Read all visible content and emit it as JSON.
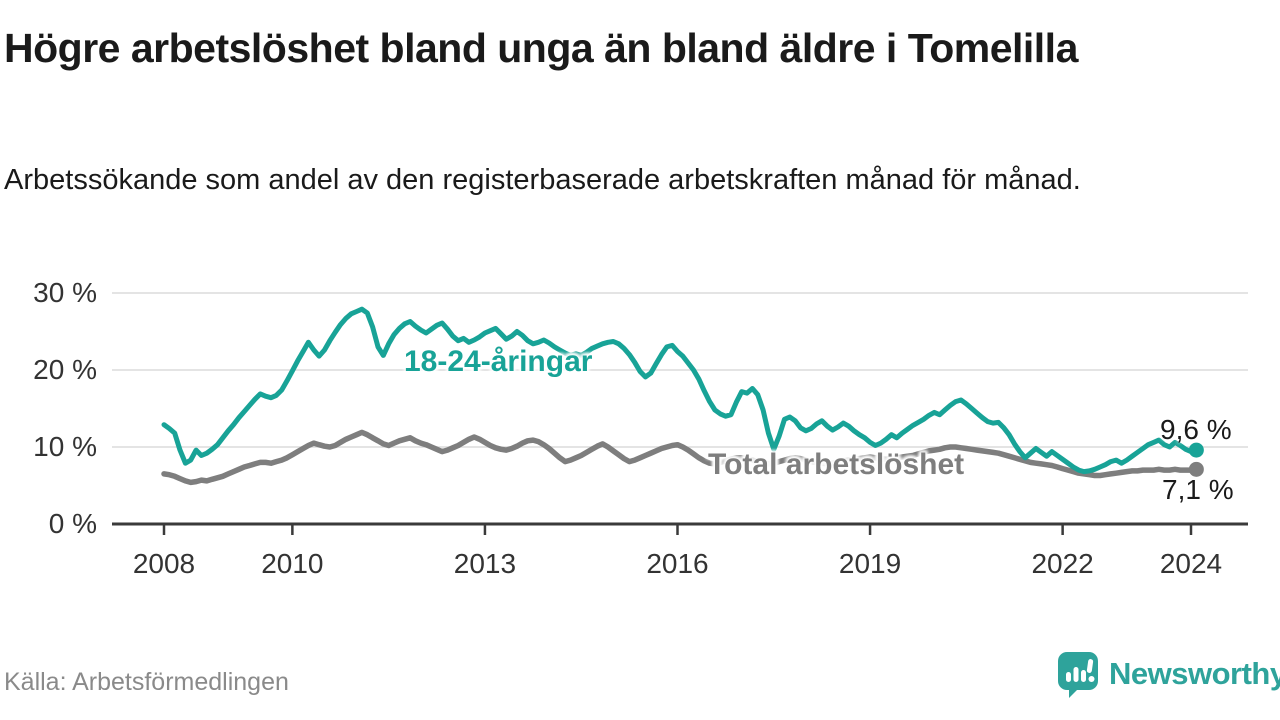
{
  "header": {
    "title": "Högre arbetslöshet bland unga än bland äldre i Tomelilla",
    "subtitle": "Arbetssökande som andel av den registerbaserade arbetskraften månad för månad."
  },
  "footer": {
    "source": "Källa: Arbetsförmedlingen",
    "brand": "Newsworthy"
  },
  "colors": {
    "youth_line": "#18A397",
    "total_line": "#7E7E7E",
    "grid": "#DBDBDB",
    "axis": "#3A3A3A",
    "text": "#1A1A1A",
    "tick_text": "#333333",
    "muted_text": "#8A8A8A",
    "brand_teal": "#2EA39B"
  },
  "chart_data": {
    "type": "line",
    "title": "Högre arbetslöshet bland unga än bland äldre i Tomelilla",
    "xlabel": "",
    "ylabel": "Arbetssökande som andel av den registerbaserade arbetskraften",
    "x_unit": "month",
    "x_start": "2008-01",
    "x_end": "2024-02",
    "ylim": [
      0,
      30
    ],
    "grid": "horizontal",
    "y_ticks": [
      {
        "label": "30 %",
        "value": 30
      },
      {
        "label": "20 %",
        "value": 20
      },
      {
        "label": "10 %",
        "value": 10
      },
      {
        "label": "0 %",
        "value": 0
      }
    ],
    "x_ticks": [
      {
        "label": "2008",
        "year": 2008
      },
      {
        "label": "2010",
        "year": 2010
      },
      {
        "label": "2013",
        "year": 2013
      },
      {
        "label": "2016",
        "year": 2016
      },
      {
        "label": "2019",
        "year": 2019
      },
      {
        "label": "2022",
        "year": 2022
      },
      {
        "label": "2024",
        "year": 2024
      }
    ],
    "series": [
      {
        "name": "Total arbetslöshet",
        "color": "#7E7E7E",
        "end_label": "7,1 %",
        "end_value": 7.1,
        "values": [
          6.5,
          6.4,
          6.2,
          5.9,
          5.6,
          5.4,
          5.5,
          5.7,
          5.6,
          5.8,
          6.0,
          6.2,
          6.5,
          6.8,
          7.1,
          7.4,
          7.6,
          7.8,
          8.0,
          8.0,
          7.9,
          8.1,
          8.3,
          8.6,
          9.0,
          9.4,
          9.8,
          10.2,
          10.5,
          10.3,
          10.1,
          10.0,
          10.2,
          10.6,
          11.0,
          11.3,
          11.6,
          11.9,
          11.6,
          11.2,
          10.8,
          10.4,
          10.2,
          10.5,
          10.8,
          11.0,
          11.2,
          10.8,
          10.5,
          10.3,
          10.0,
          9.7,
          9.4,
          9.6,
          9.9,
          10.2,
          10.6,
          11.0,
          11.3,
          11.0,
          10.6,
          10.2,
          9.9,
          9.7,
          9.6,
          9.8,
          10.1,
          10.5,
          10.8,
          10.9,
          10.7,
          10.3,
          9.8,
          9.2,
          8.6,
          8.1,
          8.3,
          8.6,
          8.9,
          9.3,
          9.7,
          10.1,
          10.4,
          10.0,
          9.5,
          9.0,
          8.5,
          8.1,
          8.3,
          8.6,
          8.9,
          9.2,
          9.5,
          9.8,
          10.0,
          10.2,
          10.3,
          10.0,
          9.6,
          9.1,
          8.6,
          8.2,
          7.9,
          7.8,
          8.0,
          8.2,
          8.4,
          8.6,
          8.6,
          8.5,
          8.3,
          8.1,
          7.9,
          7.8,
          7.9,
          8.1,
          8.3,
          8.5,
          8.6,
          8.5,
          8.3,
          8.1,
          8.0,
          7.9,
          7.8,
          7.9,
          8.0,
          8.2,
          8.3,
          8.4,
          8.5,
          8.6,
          8.7,
          8.6,
          8.5,
          8.4,
          8.5,
          8.6,
          8.7,
          8.8,
          8.9,
          9.1,
          9.3,
          9.5,
          9.6,
          9.7,
          9.9,
          10.0,
          10.0,
          9.9,
          9.8,
          9.7,
          9.6,
          9.5,
          9.4,
          9.3,
          9.2,
          9.0,
          8.8,
          8.6,
          8.4,
          8.2,
          8.0,
          7.9,
          7.8,
          7.7,
          7.6,
          7.4,
          7.2,
          7.0,
          6.8,
          6.6,
          6.5,
          6.4,
          6.3,
          6.3,
          6.4,
          6.5,
          6.6,
          6.7,
          6.8,
          6.9,
          6.9,
          7.0,
          7.0,
          7.0,
          7.1,
          7.0,
          7.0,
          7.1,
          7.0,
          7.0,
          7.0,
          7.1
        ]
      },
      {
        "name": "18-24-åringar",
        "color": "#18A397",
        "end_label": "9,6 %",
        "end_value": 9.6,
        "values": [
          12.9,
          12.4,
          11.8,
          9.6,
          7.9,
          8.3,
          9.6,
          8.9,
          9.2,
          9.7,
          10.3,
          11.2,
          12.1,
          12.9,
          13.8,
          14.6,
          15.4,
          16.2,
          16.9,
          16.6,
          16.4,
          16.7,
          17.4,
          18.6,
          19.9,
          21.2,
          22.4,
          23.6,
          22.6,
          21.8,
          22.6,
          23.8,
          24.9,
          25.9,
          26.7,
          27.3,
          27.6,
          27.9,
          27.4,
          25.6,
          23.0,
          21.9,
          23.4,
          24.6,
          25.4,
          26.0,
          26.3,
          25.7,
          25.2,
          24.8,
          25.3,
          25.8,
          26.1,
          25.3,
          24.4,
          23.8,
          24.1,
          23.6,
          23.9,
          24.3,
          24.8,
          25.1,
          25.4,
          24.7,
          24.0,
          24.4,
          25.0,
          24.5,
          23.8,
          23.4,
          23.6,
          23.9,
          23.5,
          23.0,
          22.6,
          22.2,
          21.9,
          22.1,
          21.9,
          22.3,
          22.8,
          23.1,
          23.4,
          23.6,
          23.7,
          23.4,
          22.8,
          22.0,
          21.0,
          19.8,
          19.1,
          19.6,
          20.8,
          22.0,
          23.0,
          23.2,
          22.4,
          21.8,
          20.9,
          20.0,
          18.8,
          17.3,
          15.9,
          14.8,
          14.3,
          14.0,
          14.2,
          15.8,
          17.2,
          17.0,
          17.6,
          16.8,
          14.8,
          11.8,
          9.7,
          11.4,
          13.6,
          13.9,
          13.4,
          12.5,
          12.1,
          12.4,
          13.0,
          13.4,
          12.7,
          12.2,
          12.6,
          13.1,
          12.7,
          12.1,
          11.6,
          11.2,
          10.6,
          10.2,
          10.5,
          11.0,
          11.6,
          11.2,
          11.8,
          12.3,
          12.8,
          13.2,
          13.6,
          14.1,
          14.5,
          14.2,
          14.8,
          15.4,
          15.9,
          16.1,
          15.6,
          15.0,
          14.4,
          13.8,
          13.3,
          13.1,
          13.2,
          12.5,
          11.6,
          10.4,
          9.4,
          8.6,
          9.2,
          9.8,
          9.3,
          8.8,
          9.4,
          8.9,
          8.4,
          7.9,
          7.4,
          7.0,
          6.8,
          6.9,
          7.1,
          7.4,
          7.7,
          8.1,
          8.3,
          7.9,
          8.3,
          8.8,
          9.3,
          9.8,
          10.3,
          10.6,
          10.9,
          10.3,
          10.0,
          10.6,
          10.2,
          9.7,
          9.4,
          9.6
        ]
      }
    ],
    "legend_position": "inline-labels"
  },
  "annotations": {
    "youth_label": "18-24-åringar",
    "total_label": "Total arbetslöshet",
    "youth_end_label": "9,6 %",
    "total_end_label": "7,1 %"
  }
}
